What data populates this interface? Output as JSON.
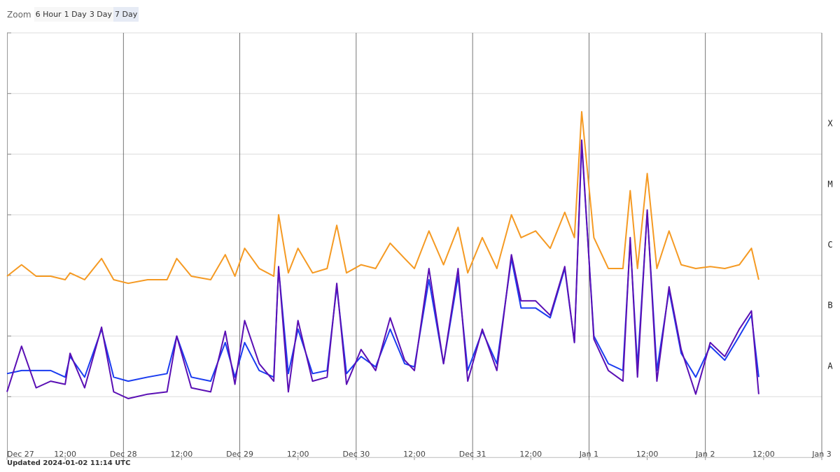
{
  "zoom": {
    "label": "Zoom",
    "buttons": [
      "6 Hour",
      "1 Day",
      "3 Day",
      "7 Day"
    ],
    "selected": 3
  },
  "updated": "Updated 2024-01-02 11:14 UTC",
  "chart_data": {
    "type": "line",
    "yscale": "log",
    "grid": true,
    "xlim": [
      "Dec 27 00:00",
      "Jan 3 00:00"
    ],
    "xticks": [
      {
        "value": "Dec 27 00:00",
        "label": "Dec 27"
      },
      {
        "value": "Dec 27 12:00",
        "label": "12:00"
      },
      {
        "value": "Dec 28 00:00",
        "label": "Dec 28"
      },
      {
        "value": "Dec 28 12:00",
        "label": "12:00"
      },
      {
        "value": "Dec 29 00:00",
        "label": "Dec 29"
      },
      {
        "value": "Dec 29 12:00",
        "label": "12:00"
      },
      {
        "value": "Dec 30 00:00",
        "label": "Dec 30"
      },
      {
        "value": "Dec 30 12:00",
        "label": "12:00"
      },
      {
        "value": "Dec 31 00:00",
        "label": "Dec 31"
      },
      {
        "value": "Dec 31 12:00",
        "label": "12:00"
      },
      {
        "value": "Jan 1 00:00",
        "label": "Jan 1"
      },
      {
        "value": "Jan 1 12:00",
        "label": "12:00"
      },
      {
        "value": "Jan 2 00:00",
        "label": "Jan 2"
      },
      {
        "value": "Jan 2 12:00",
        "label": "12:00"
      },
      {
        "value": "Jan 3 00:00",
        "label": "Jan 3"
      }
    ],
    "ylim": [
      1e-09,
      0.01
    ],
    "yticks": [
      1e-09,
      1e-08,
      1e-07,
      1e-06,
      1e-05,
      0.0001,
      0.001,
      0.01
    ],
    "y2lim": [
      1e-09,
      0.01
    ],
    "y2ticks": [
      {
        "value": 0.000316,
        "label": "X"
      },
      {
        "value": 3.16e-05,
        "label": "M"
      },
      {
        "value": 3.16e-06,
        "label": "C"
      },
      {
        "value": 3.16e-07,
        "label": "B"
      },
      {
        "value": 3.16e-08,
        "label": "A"
      }
    ],
    "x": [
      "Dec 27 00:00",
      "Dec 27 03:00",
      "Dec 27 06:00",
      "Dec 27 09:00",
      "Dec 27 12:00",
      "Dec 27 13:00",
      "Dec 27 16:00",
      "Dec 27 19:30",
      "Dec 27 22:00",
      "Dec 28 01:00",
      "Dec 28 05:00",
      "Dec 28 09:00",
      "Dec 28 11:00",
      "Dec 28 14:00",
      "Dec 28 18:00",
      "Dec 28 21:00",
      "Dec 28 23:00",
      "Dec 29 01:00",
      "Dec 29 04:00",
      "Dec 29 07:00",
      "Dec 29 08:00",
      "Dec 29 10:00",
      "Dec 29 12:00",
      "Dec 29 15:00",
      "Dec 29 18:00",
      "Dec 29 20:00",
      "Dec 29 22:00",
      "Dec 30 01:00",
      "Dec 30 04:00",
      "Dec 30 07:00",
      "Dec 30 10:00",
      "Dec 30 12:00",
      "Dec 30 15:00",
      "Dec 30 18:00",
      "Dec 30 21:00",
      "Dec 30 23:00",
      "Dec 31 02:00",
      "Dec 31 05:00",
      "Dec 31 08:00",
      "Dec 31 10:00",
      "Dec 31 13:00",
      "Dec 31 16:00",
      "Dec 31 19:00",
      "Dec 31 21:00",
      "Dec 31 22:30",
      "Jan 1 01:00",
      "Jan 1 04:00",
      "Jan 1 07:00",
      "Jan 1 08:30",
      "Jan 1 10:00",
      "Jan 1 12:00",
      "Jan 1 14:00",
      "Jan 1 16:30",
      "Jan 1 19:00",
      "Jan 1 22:00",
      "Jan 2 01:00",
      "Jan 2 04:00",
      "Jan 2 07:00",
      "Jan 2 09:30",
      "Jan 2 11:00"
    ],
    "series": [
      {
        "color": "#f59a23",
        "values": [
          9.7e-07,
          1.5e-06,
          9.7e-07,
          9.7e-07,
          8.5e-07,
          1.1e-06,
          8.5e-07,
          1.9e-06,
          8.5e-07,
          7.4e-07,
          8.5e-07,
          8.5e-07,
          1.9e-06,
          9.7e-07,
          8.5e-07,
          2.2e-06,
          9.7e-07,
          2.8e-06,
          1.3e-06,
          9.7e-07,
          1e-05,
          1.1e-06,
          2.8e-06,
          1.1e-06,
          1.3e-06,
          6.7e-06,
          1.1e-06,
          1.5e-06,
          1.3e-06,
          3.4e-06,
          1.9e-06,
          1.3e-06,
          5.4e-06,
          1.5e-06,
          6.2e-06,
          1.1e-06,
          4.2e-06,
          1.3e-06,
          1e-05,
          4.2e-06,
          5.4e-06,
          2.8e-06,
          1.1e-05,
          4.2e-06,
          0.0005,
          4.2e-06,
          1.3e-06,
          1.3e-06,
          2.5e-05,
          1.3e-06,
          4.8e-05,
          1.3e-06,
          5.4e-06,
          1.5e-06,
          1.3e-06,
          1.4e-06,
          1.3e-06,
          1.5e-06,
          2.8e-06,
          8.5e-07
        ]
      },
      {
        "color": "#1a3cf0",
        "values": [
          2.4e-08,
          2.7e-08,
          2.7e-08,
          2.7e-08,
          2.1e-08,
          4.6e-08,
          2.1e-08,
          1.3e-07,
          2.1e-08,
          1.8e-08,
          2.1e-08,
          2.4e-08,
          1e-07,
          2.1e-08,
          1.8e-08,
          7.8e-08,
          2.1e-08,
          7.8e-08,
          2.7e-08,
          2.1e-08,
          1.3e-06,
          2.4e-08,
          1.3e-07,
          2.4e-08,
          2.7e-08,
          6.5e-07,
          2.4e-08,
          4.6e-08,
          3.1e-08,
          1.3e-07,
          3.5e-08,
          3.1e-08,
          8.5e-07,
          3.5e-08,
          9.7e-07,
          2.7e-08,
          1.2e-07,
          3.5e-08,
          1.9e-06,
          2.9e-07,
          2.9e-07,
          2e-07,
          1.3e-06,
          7.8e-08,
          0.00015,
          1e-07,
          3.5e-08,
          2.7e-08,
          3.7e-06,
          3.1e-08,
          1.1e-05,
          2.7e-08,
          5.7e-07,
          5.2e-08,
          2.1e-08,
          6.8e-08,
          4e-08,
          1e-07,
          2.2e-07,
          2.1e-08
        ]
      },
      {
        "color": "#5a0fb4",
        "values": [
          1.2e-08,
          6.8e-08,
          1.4e-08,
          1.8e-08,
          1.6e-08,
          5.2e-08,
          1.4e-08,
          1.4e-07,
          1.2e-08,
          9.3e-09,
          1.1e-08,
          1.2e-08,
          1e-07,
          1.4e-08,
          1.2e-08,
          1.2e-07,
          1.6e-08,
          1.8e-07,
          3.5e-08,
          1.8e-08,
          1.4e-06,
          1.2e-08,
          1.8e-07,
          1.8e-08,
          2.1e-08,
          7.4e-07,
          1.6e-08,
          6e-08,
          2.7e-08,
          2e-07,
          4e-08,
          2.7e-08,
          1.3e-06,
          3.5e-08,
          1.3e-06,
          1.8e-08,
          1.3e-07,
          2.7e-08,
          2.2e-06,
          3.8e-07,
          3.8e-07,
          2.2e-07,
          1.4e-06,
          7.8e-08,
          0.00017,
          8.9e-08,
          2.7e-08,
          1.8e-08,
          4.2e-06,
          2.1e-08,
          1.2e-05,
          1.8e-08,
          6.5e-07,
          6e-08,
          1.1e-08,
          7.8e-08,
          4.6e-08,
          1.3e-07,
          2.6e-07,
          1.1e-08
        ]
      }
    ]
  }
}
